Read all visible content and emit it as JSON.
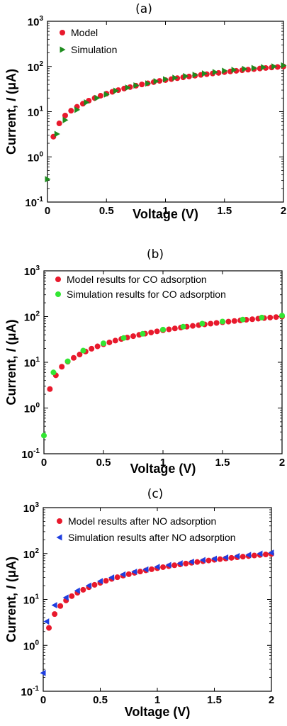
{
  "chart_data": [
    {
      "type": "scatter",
      "panel_label": "(a)",
      "xlabel": "Voltage (V)",
      "ylabel": "Current, I (μA)",
      "ylabel_parts": {
        "prefix": "Current, ",
        "symbol": "I",
        "unit": " (μA)"
      },
      "xlim": [
        0,
        2
      ],
      "ylim": [
        0.1,
        1000
      ],
      "yscale": "log",
      "x_ticks": [
        "0",
        "0.5",
        "1",
        "1.5",
        "2"
      ],
      "y_ticks": [
        {
          "base": "10",
          "exp": "-1",
          "value": 0.1
        },
        {
          "base": "10",
          "exp": "0",
          "value": 1
        },
        {
          "base": "10",
          "exp": "1",
          "value": 10
        },
        {
          "base": "10",
          "exp": "2",
          "value": 100
        },
        {
          "base": "10",
          "exp": "3",
          "value": 1000
        }
      ],
      "legend_position": "top-left",
      "series": [
        {
          "name": "Model",
          "marker": "circle",
          "color": "#e8192c",
          "x": [
            0.05,
            0.1,
            0.15,
            0.2,
            0.25,
            0.3,
            0.35,
            0.4,
            0.45,
            0.5,
            0.55,
            0.6,
            0.65,
            0.7,
            0.75,
            0.8,
            0.85,
            0.9,
            0.95,
            1.0,
            1.05,
            1.1,
            1.15,
            1.2,
            1.25,
            1.3,
            1.35,
            1.4,
            1.45,
            1.5,
            1.55,
            1.6,
            1.65,
            1.7,
            1.75,
            1.8,
            1.85,
            1.9,
            1.95,
            2.0
          ],
          "y": [
            2.8,
            5.5,
            8.2,
            10.5,
            12.8,
            15,
            17.5,
            20,
            22.5,
            25,
            27.5,
            30,
            32.5,
            35,
            37.5,
            40,
            42.5,
            45,
            48,
            50,
            52.5,
            55,
            57.5,
            60,
            62.5,
            65,
            67.5,
            70,
            72,
            75,
            77.5,
            80,
            82.5,
            85,
            87.5,
            90,
            92.5,
            95,
            97.5,
            100
          ]
        },
        {
          "name": "Simulation",
          "marker": "triangle-right",
          "color": "#1e8c1e",
          "x": [
            0,
            0.08,
            0.15,
            0.25,
            0.33,
            0.42,
            0.5,
            0.58,
            0.68,
            0.75,
            0.85,
            0.92,
            1.0,
            1.08,
            1.17,
            1.25,
            1.33,
            1.42,
            1.5,
            1.58,
            1.67,
            1.75,
            1.83,
            1.92,
            2.0
          ],
          "y": [
            0.32,
            3.2,
            6.5,
            11,
            16,
            20,
            24,
            29,
            34,
            38,
            42,
            47,
            52,
            56,
            61,
            65,
            70,
            75,
            80,
            84,
            88,
            92,
            96,
            100,
            105
          ]
        }
      ]
    },
    {
      "type": "scatter",
      "panel_label": "(b)",
      "xlabel": "Voltage (V)",
      "ylabel": "Current, I (μA)",
      "ylabel_parts": {
        "prefix": "Current, ",
        "symbol": "I",
        "unit": " (μA)"
      },
      "xlim": [
        0,
        2
      ],
      "ylim": [
        0.1,
        1000
      ],
      "yscale": "log",
      "x_ticks": [
        "0",
        "0.5",
        "1",
        "1.5",
        "2"
      ],
      "y_ticks": [
        {
          "base": "10",
          "exp": "-1",
          "value": 0.1
        },
        {
          "base": "10",
          "exp": "0",
          "value": 1
        },
        {
          "base": "10",
          "exp": "1",
          "value": 10
        },
        {
          "base": "10",
          "exp": "2",
          "value": 100
        },
        {
          "base": "10",
          "exp": "3",
          "value": 1000
        }
      ],
      "legend_position": "top-left",
      "series": [
        {
          "name": "Model results for CO adsorption",
          "marker": "circle",
          "color": "#e8192c",
          "x": [
            0.05,
            0.1,
            0.15,
            0.2,
            0.25,
            0.3,
            0.35,
            0.4,
            0.45,
            0.5,
            0.55,
            0.6,
            0.65,
            0.7,
            0.75,
            0.8,
            0.85,
            0.9,
            0.95,
            1.0,
            1.05,
            1.1,
            1.15,
            1.2,
            1.25,
            1.3,
            1.35,
            1.4,
            1.45,
            1.5,
            1.55,
            1.6,
            1.65,
            1.7,
            1.75,
            1.8,
            1.85,
            1.9,
            1.95,
            2.0
          ],
          "y": [
            2.6,
            5.2,
            8,
            10.3,
            12.5,
            14.8,
            17.2,
            19.8,
            22.3,
            24.8,
            27.2,
            29.8,
            32.3,
            34.8,
            37.3,
            39.8,
            42.3,
            44.8,
            47.5,
            50,
            52.5,
            55,
            57.5,
            60,
            62.5,
            65,
            67.5,
            70,
            72.5,
            75,
            77.5,
            80,
            82.5,
            85,
            87.5,
            90,
            92.5,
            95,
            97.5,
            100
          ]
        },
        {
          "name": "Simulation results for CO adsorption",
          "marker": "circle",
          "color": "#33e633",
          "x": [
            0,
            0.08,
            0.2,
            0.33,
            0.5,
            0.67,
            0.83,
            1.0,
            1.17,
            1.33,
            1.5,
            1.67,
            1.83,
            2.0
          ],
          "y": [
            0.25,
            6,
            10.5,
            18,
            26,
            34,
            42,
            52,
            60,
            70,
            78,
            86,
            95,
            105
          ]
        }
      ]
    },
    {
      "type": "scatter",
      "panel_label": "(c)",
      "xlabel": "Voltage (V)",
      "ylabel": "Current, I (μA)",
      "ylabel_parts": {
        "prefix": "Current, ",
        "symbol": "I",
        "unit": " (μA)"
      },
      "xlim": [
        0,
        2
      ],
      "ylim": [
        0.1,
        1000
      ],
      "yscale": "log",
      "x_ticks": [
        "0",
        "0.5",
        "1",
        "1.5",
        "2"
      ],
      "y_ticks": [
        {
          "base": "10",
          "exp": "-1",
          "value": 0.1
        },
        {
          "base": "10",
          "exp": "0",
          "value": 1
        },
        {
          "base": "10",
          "exp": "1",
          "value": 10
        },
        {
          "base": "10",
          "exp": "2",
          "value": 100
        },
        {
          "base": "10",
          "exp": "3",
          "value": 1000
        }
      ],
      "legend_position": "top-left",
      "series": [
        {
          "name": "Model results after NO adsorption",
          "marker": "circle",
          "color": "#e8192c",
          "x": [
            0.05,
            0.1,
            0.15,
            0.2,
            0.25,
            0.3,
            0.35,
            0.4,
            0.45,
            0.5,
            0.55,
            0.6,
            0.65,
            0.7,
            0.75,
            0.8,
            0.85,
            0.9,
            0.95,
            1.0,
            1.05,
            1.1,
            1.15,
            1.2,
            1.25,
            1.3,
            1.35,
            1.4,
            1.45,
            1.5,
            1.55,
            1.6,
            1.65,
            1.7,
            1.75,
            1.8,
            1.85,
            1.9,
            1.95,
            2.0
          ],
          "y": [
            2.4,
            4.8,
            7.2,
            9.5,
            11.8,
            14,
            16.2,
            18.5,
            20.8,
            23,
            25.5,
            28,
            30.5,
            33,
            35.5,
            38,
            40.5,
            43,
            45.5,
            48,
            50.5,
            53,
            55.5,
            58,
            60.5,
            63,
            65.5,
            68,
            70.5,
            73,
            75.5,
            78,
            80.5,
            83,
            85.5,
            88,
            90.5,
            93,
            95.5,
            98
          ]
        },
        {
          "name": "Simulation results after NO adsorption",
          "marker": "triangle-left",
          "color": "#1f3fe0",
          "x": [
            0,
            0.03,
            0.1,
            0.2,
            0.3,
            0.4,
            0.5,
            0.6,
            0.7,
            0.8,
            0.9,
            1.0,
            1.1,
            1.2,
            1.3,
            1.4,
            1.5,
            1.6,
            1.7,
            1.8,
            1.9,
            2.0
          ],
          "y": [
            0.25,
            3.3,
            7.5,
            11,
            15.5,
            20,
            25,
            30,
            35,
            40,
            45,
            51,
            56,
            61,
            66,
            72,
            77,
            82,
            88,
            93,
            99,
            104
          ]
        }
      ]
    }
  ]
}
